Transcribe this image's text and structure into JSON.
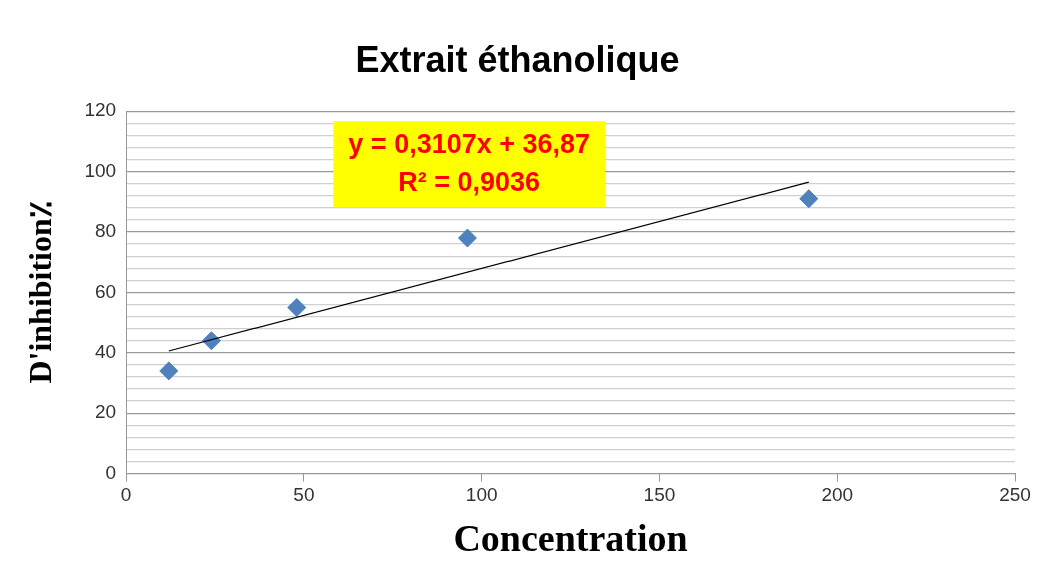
{
  "chart_data": {
    "type": "scatter",
    "title": "Extrait éthanolique",
    "xlabel": "Concentration",
    "ylabel": "D'inhibition٪",
    "xlim": [
      0,
      250
    ],
    "xticks": [
      0,
      50,
      100,
      150,
      200,
      250
    ],
    "ylim": [
      0,
      120
    ],
    "yticks": [
      0,
      {
        "value": 4,
        "label": null
      },
      {
        "value": 8,
        "label": null
      },
      {
        "value": 12,
        "label": null
      },
      {
        "value": 16,
        "label": null
      },
      20,
      {
        "value": 24,
        "label": null
      },
      {
        "value": 28,
        "label": null
      },
      {
        "value": 32,
        "label": null
      },
      {
        "value": 36,
        "label": null
      },
      40,
      {
        "value": 44,
        "label": null
      },
      {
        "value": 48,
        "label": null
      },
      {
        "value": 52,
        "label": null
      },
      {
        "value": 56,
        "label": null
      },
      60,
      {
        "value": 64,
        "label": null
      },
      {
        "value": 68,
        "label": null
      },
      {
        "value": 72,
        "label": null
      },
      {
        "value": 76,
        "label": null
      },
      80,
      {
        "value": 84,
        "label": null
      },
      {
        "value": 88,
        "label": null
      },
      {
        "value": 92,
        "label": null
      },
      {
        "value": 96,
        "label": null
      },
      100,
      {
        "value": 104,
        "label": null
      },
      {
        "value": 108,
        "label": null
      },
      {
        "value": 112,
        "label": null
      },
      {
        "value": 116,
        "label": null
      },
      120
    ],
    "grid": "y",
    "legend": false,
    "series": [
      {
        "type": "scatter",
        "color": "#4f81bd",
        "marker": "diamond",
        "x": [
          12,
          24,
          48,
          96,
          192
        ],
        "values": [
          34,
          44,
          55,
          78,
          91
        ]
      },
      {
        "type": "line",
        "color": "#000000",
        "marker": "none",
        "line_style": "solid",
        "x": [
          12,
          192
        ],
        "values": [
          40.6,
          96.5
        ]
      }
    ],
    "annotations": [
      "y = 0,3107x + 36,87",
      "R² = 0,9036"
    ]
  }
}
